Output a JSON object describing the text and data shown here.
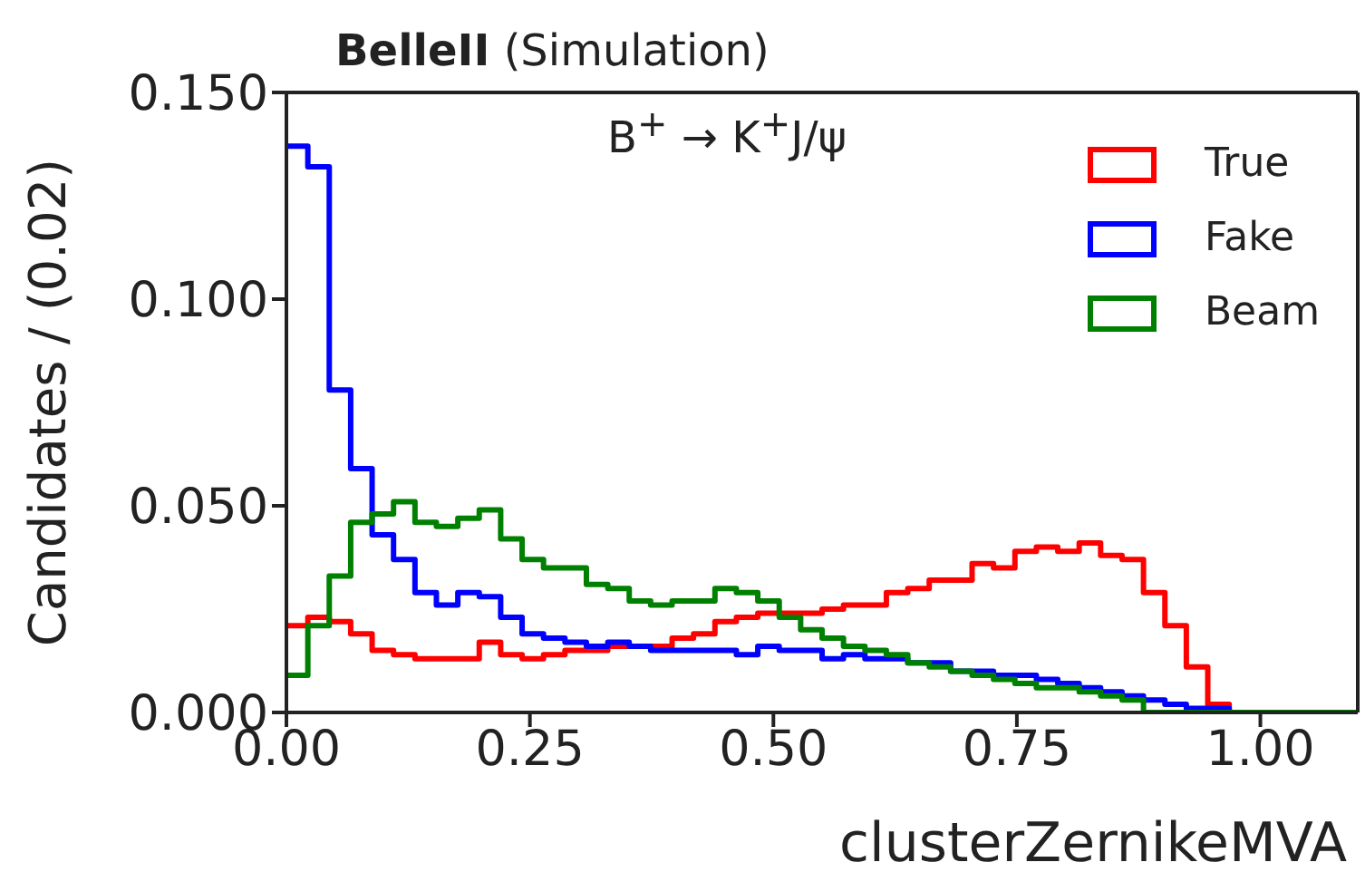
{
  "chart_data": {
    "type": "histogram",
    "title": "BelleII",
    "subtitle": "(Simulation)",
    "xlabel": "clusterZernikeMVA",
    "ylabel": "Candidates / (0.02)",
    "annotations": [
      "B$^{+}$ → K$^{+}$J/ψ"
    ],
    "bins": [
      0,
      0.022,
      0.044,
      0.066,
      0.088,
      0.11,
      0.132,
      0.154,
      0.176,
      0.198,
      0.22,
      0.242,
      0.264,
      0.286,
      0.308,
      0.33,
      0.352,
      0.374,
      0.396,
      0.418,
      0.44,
      0.462,
      0.484,
      0.506,
      0.528,
      0.55,
      0.572,
      0.594,
      0.616,
      0.638,
      0.66,
      0.682,
      0.704,
      0.726,
      0.748,
      0.77,
      0.792,
      0.814,
      0.836,
      0.858,
      0.88,
      0.902,
      0.924,
      0.946,
      0.968,
      0.99,
      1.012,
      1.034,
      1.056,
      1.078,
      1.1
    ],
    "series": [
      {
        "name": "True",
        "color": "#ff0000",
        "values": [
          0.021,
          0.023,
          0.022,
          0.019,
          0.015,
          0.014,
          0.013,
          0.013,
          0.013,
          0.017,
          0.014,
          0.013,
          0.014,
          0.015,
          0.015,
          0.016,
          0.016,
          0.016,
          0.018,
          0.019,
          0.022,
          0.023,
          0.024,
          0.024,
          0.024,
          0.025,
          0.026,
          0.026,
          0.029,
          0.03,
          0.032,
          0.032,
          0.036,
          0.035,
          0.039,
          0.04,
          0.039,
          0.041,
          0.038,
          0.037,
          0.029,
          0.021,
          0.011,
          0.002,
          0,
          0,
          0,
          0,
          0,
          0
        ]
      },
      {
        "name": "Fake",
        "color": "#0000ff",
        "values": [
          0.137,
          0.132,
          0.078,
          0.059,
          0.043,
          0.037,
          0.029,
          0.026,
          0.029,
          0.028,
          0.023,
          0.019,
          0.018,
          0.017,
          0.016,
          0.017,
          0.016,
          0.015,
          0.015,
          0.015,
          0.015,
          0.014,
          0.016,
          0.015,
          0.015,
          0.013,
          0.014,
          0.013,
          0.013,
          0.012,
          0.012,
          0.01,
          0.01,
          0.009,
          0.009,
          0.008,
          0.007,
          0.006,
          0.005,
          0.004,
          0.003,
          0.002,
          0.001,
          0.001,
          0,
          0,
          0,
          0,
          0,
          0
        ]
      },
      {
        "name": "Beam",
        "color": "#008000",
        "values": [
          0.009,
          0.021,
          0.033,
          0.046,
          0.048,
          0.051,
          0.046,
          0.045,
          0.047,
          0.049,
          0.042,
          0.037,
          0.035,
          0.035,
          0.031,
          0.03,
          0.027,
          0.026,
          0.027,
          0.027,
          0.03,
          0.029,
          0.027,
          0.023,
          0.02,
          0.018,
          0.016,
          0.015,
          0.014,
          0.012,
          0.011,
          0.01,
          0.009,
          0.008,
          0.007,
          0.006,
          0.006,
          0.005,
          0.004,
          0.003,
          0,
          0,
          0,
          0,
          0,
          0,
          0,
          0,
          0,
          0
        ]
      }
    ],
    "xlim": [
      0,
      1.1
    ],
    "ylim": [
      0,
      0.15
    ],
    "xticks": [
      {
        "value": 0,
        "label": "0.00"
      },
      {
        "value": 0.25,
        "label": "0.25"
      },
      {
        "value": 0.5,
        "label": "0.50"
      },
      {
        "value": 0.75,
        "label": "0.75"
      },
      {
        "value": 1,
        "label": "1.00"
      }
    ],
    "yticks": [
      {
        "value": 0,
        "label": "0.000"
      },
      {
        "value": 0.05,
        "label": "0.050"
      },
      {
        "value": 0.1,
        "label": "0.100"
      },
      {
        "value": 0.15,
        "label": "0.150"
      }
    ],
    "grid": false,
    "legend": "top right"
  }
}
